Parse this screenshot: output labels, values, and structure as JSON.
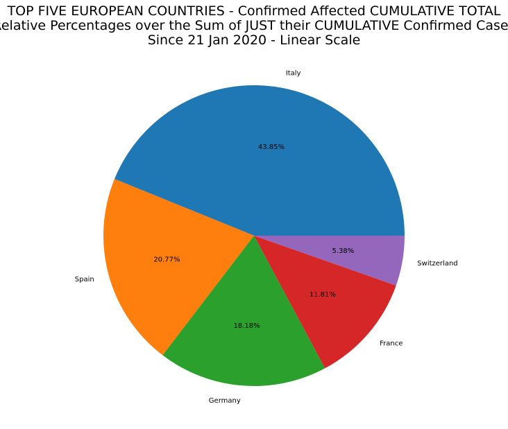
{
  "chart_data": {
    "type": "pie",
    "title_lines": [
      "TOP FIVE EUROPEAN COUNTRIES - Confirmed Affected CUMULATIVE TOTAL",
      "Relative Percentages over the Sum of JUST their CUMULATIVE Confirmed Cases",
      "Since 21 Jan 2020 - Linear Scale"
    ],
    "start_angle_deg": 0,
    "direction": "counterclockwise",
    "slices": [
      {
        "label": "Italy",
        "value": 43.85,
        "pct_label": "43.85%",
        "color": "#1f77b4"
      },
      {
        "label": "Spain",
        "value": 20.77,
        "pct_label": "20.77%",
        "color": "#ff7f0e"
      },
      {
        "label": "Germany",
        "value": 18.18,
        "pct_label": "18.18%",
        "color": "#2ca02c"
      },
      {
        "label": "France",
        "value": 11.81,
        "pct_label": "11.81%",
        "color": "#d62728"
      },
      {
        "label": "Switzerland",
        "value": 5.38,
        "pct_label": "5.38%",
        "color": "#9467bd"
      }
    ]
  }
}
